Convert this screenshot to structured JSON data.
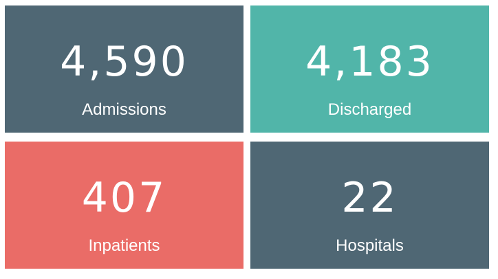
{
  "cards": [
    {
      "value": "4,590",
      "label": "Admissions",
      "color": "#4f6774"
    },
    {
      "value": "4,183",
      "label": "Discharged",
      "color": "#51b5a9"
    },
    {
      "value": "407",
      "label": "Inpatients",
      "color": "#ea6c67"
    },
    {
      "value": "22",
      "label": "Hospitals",
      "color": "#4f6774"
    }
  ]
}
